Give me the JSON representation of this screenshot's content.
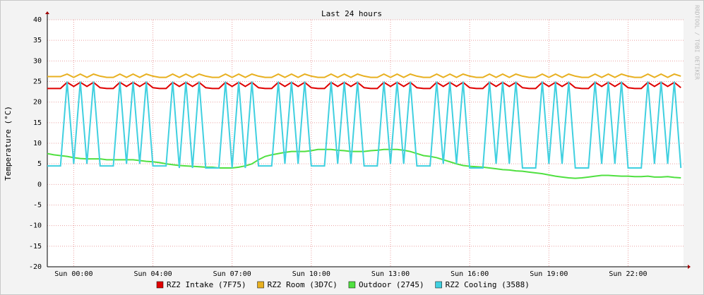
{
  "chart_data": {
    "type": "line",
    "title": "Last 24 hours",
    "y_label": "Temperature (°C)",
    "watermark": "RRDTOOL / TOBI OETIKER",
    "x": [
      -1,
      -0.75,
      -0.5,
      -0.25,
      0,
      0.25,
      0.5,
      0.75,
      1,
      1.25,
      1.5,
      1.75,
      2,
      2.25,
      2.5,
      2.75,
      3,
      3.25,
      3.5,
      3.75,
      4,
      4.25,
      4.5,
      4.75,
      5,
      5.25,
      5.5,
      5.75,
      6,
      6.25,
      6.5,
      6.75,
      7,
      7.25,
      7.5,
      7.75,
      8,
      8.25,
      8.5,
      8.75,
      9,
      9.25,
      9.5,
      9.75,
      10,
      10.25,
      10.5,
      10.75,
      11,
      11.25,
      11.5,
      11.75,
      12,
      12.25,
      12.5,
      12.75,
      13,
      13.25,
      13.5,
      13.75,
      14,
      14.25,
      14.5,
      14.75,
      15,
      15.25,
      15.5,
      15.75,
      16,
      16.25,
      16.5,
      16.75,
      17,
      17.25,
      17.5,
      17.75,
      18,
      18.25,
      18.5,
      18.75,
      19,
      19.25,
      19.5,
      19.75,
      20,
      20.25,
      20.5,
      20.75,
      21,
      21.25,
      21.5,
      21.75,
      22,
      22.25,
      22.5,
      22.75,
      23
    ],
    "xlim": [
      -1,
      23.1
    ],
    "xticks": [
      {
        "value": 0,
        "label": "Sun 00:00"
      },
      {
        "value": 3,
        "label": "Sun 04:00"
      },
      {
        "value": 6,
        "label": "Sun 07:00"
      },
      {
        "value": 9,
        "label": "Sun 10:00"
      },
      {
        "value": 12,
        "label": "Sun 13:00"
      },
      {
        "value": 15,
        "label": "Sun 16:00"
      },
      {
        "value": 18,
        "label": "Sun 19:00"
      },
      {
        "value": 21,
        "label": "Sun 22:00"
      }
    ],
    "ylim": [
      -20,
      40
    ],
    "yticks": [
      -20,
      -15,
      -10,
      -5,
      0,
      5,
      10,
      15,
      20,
      25,
      30,
      35,
      40
    ],
    "grid": true,
    "series": [
      {
        "name": "RZ2 Intake (7F75)",
        "color": "#e00000",
        "values": [
          23.3,
          23.3,
          23.3,
          24.8,
          23.8,
          24.8,
          23.8,
          24.8,
          23.5,
          23.3,
          23.3,
          24.8,
          23.8,
          24.8,
          23.8,
          24.8,
          23.5,
          23.3,
          23.3,
          24.8,
          23.8,
          24.8,
          23.8,
          24.8,
          23.5,
          23.3,
          23.3,
          24.8,
          23.8,
          24.8,
          23.8,
          24.8,
          23.5,
          23.3,
          23.3,
          24.8,
          23.8,
          24.8,
          23.8,
          24.8,
          23.5,
          23.3,
          23.3,
          24.8,
          23.8,
          24.8,
          23.8,
          24.8,
          23.5,
          23.3,
          23.3,
          24.8,
          23.8,
          24.8,
          23.8,
          24.8,
          23.5,
          23.3,
          23.3,
          24.8,
          23.8,
          24.8,
          23.8,
          24.8,
          23.5,
          23.3,
          23.3,
          24.8,
          23.8,
          24.8,
          23.8,
          24.8,
          23.5,
          23.3,
          23.3,
          24.8,
          23.8,
          24.8,
          23.8,
          24.8,
          23.5,
          23.3,
          23.3,
          24.8,
          23.8,
          24.8,
          23.8,
          24.8,
          23.5,
          23.3,
          23.3,
          24.8,
          23.8,
          24.8,
          23.8,
          24.8,
          23.5
        ]
      },
      {
        "name": "RZ2 Room (3D7C)",
        "color": "#e8b020",
        "values": [
          26.2,
          26.2,
          26.2,
          26.8,
          26,
          26.8,
          26,
          26.8,
          26.3,
          26,
          26,
          26.8,
          26,
          26.8,
          26,
          26.8,
          26.3,
          26,
          26,
          26.8,
          26,
          26.8,
          26,
          26.8,
          26.3,
          26,
          26,
          26.8,
          26,
          26.8,
          26,
          26.8,
          26.3,
          26,
          26,
          26.8,
          26,
          26.8,
          26,
          26.8,
          26.3,
          26,
          26,
          26.8,
          26,
          26.8,
          26,
          26.8,
          26.3,
          26,
          26,
          26.8,
          26,
          26.8,
          26,
          26.8,
          26.3,
          26,
          26,
          26.8,
          26,
          26.8,
          26,
          26.8,
          26.3,
          26,
          26,
          26.8,
          26,
          26.8,
          26,
          26.8,
          26.3,
          26,
          26,
          26.8,
          26,
          26.8,
          26,
          26.8,
          26.3,
          26,
          26,
          26.8,
          26,
          26.8,
          26,
          26.8,
          26.3,
          26,
          26,
          26.8,
          26,
          26.8,
          26,
          26.8,
          26.3
        ]
      },
      {
        "name": "Outdoor (2745)",
        "color": "#50e040",
        "values": [
          7.5,
          7.2,
          7,
          6.8,
          6.5,
          6.3,
          6.2,
          6.2,
          6.2,
          6,
          6,
          6,
          6,
          6,
          5.8,
          5.6,
          5.5,
          5.3,
          5,
          4.8,
          4.6,
          4.5,
          4.4,
          4.3,
          4.2,
          4.2,
          4,
          4,
          4,
          4.2,
          4.5,
          5,
          6,
          6.8,
          7.2,
          7.5,
          7.8,
          8,
          8,
          8,
          8.2,
          8.5,
          8.5,
          8.5,
          8.3,
          8.2,
          8,
          8,
          8,
          8.2,
          8.3,
          8.5,
          8.5,
          8.5,
          8.3,
          8,
          7.5,
          7,
          6.8,
          6.5,
          6,
          5.5,
          5,
          4.6,
          4.4,
          4.3,
          4.2,
          4,
          3.8,
          3.6,
          3.5,
          3.3,
          3.2,
          3,
          2.8,
          2.6,
          2.3,
          2,
          1.8,
          1.6,
          1.5,
          1.6,
          1.8,
          2,
          2.2,
          2.2,
          2.1,
          2,
          2,
          1.9,
          1.9,
          2,
          1.8,
          1.8,
          1.9,
          1.7,
          1.6
        ]
      },
      {
        "name": "RZ2 Cooling (3588)",
        "color": "#40d0e0",
        "values": [
          4.5,
          4.5,
          4.5,
          25,
          5,
          25,
          5,
          25,
          4.5,
          4.5,
          4.5,
          25,
          5,
          25,
          5,
          25,
          4.5,
          4.5,
          4.5,
          25,
          4,
          25,
          4,
          25,
          4,
          4,
          4,
          25,
          4,
          25,
          4,
          25,
          4.5,
          4.5,
          4.5,
          25,
          5,
          25,
          5,
          25,
          4.5,
          4.5,
          4.5,
          25,
          5,
          25,
          5,
          25,
          4.5,
          4.5,
          4.5,
          25,
          5,
          25,
          5,
          25,
          4.5,
          4.5,
          4.5,
          25,
          5,
          25,
          5,
          25,
          4,
          4,
          4,
          25,
          5,
          25,
          5,
          25,
          4,
          4,
          4,
          25,
          5,
          25,
          5,
          25,
          4,
          4,
          4,
          25,
          5,
          25,
          5,
          25,
          4,
          4,
          4,
          25,
          5,
          25,
          5,
          25,
          4
        ]
      }
    ]
  }
}
